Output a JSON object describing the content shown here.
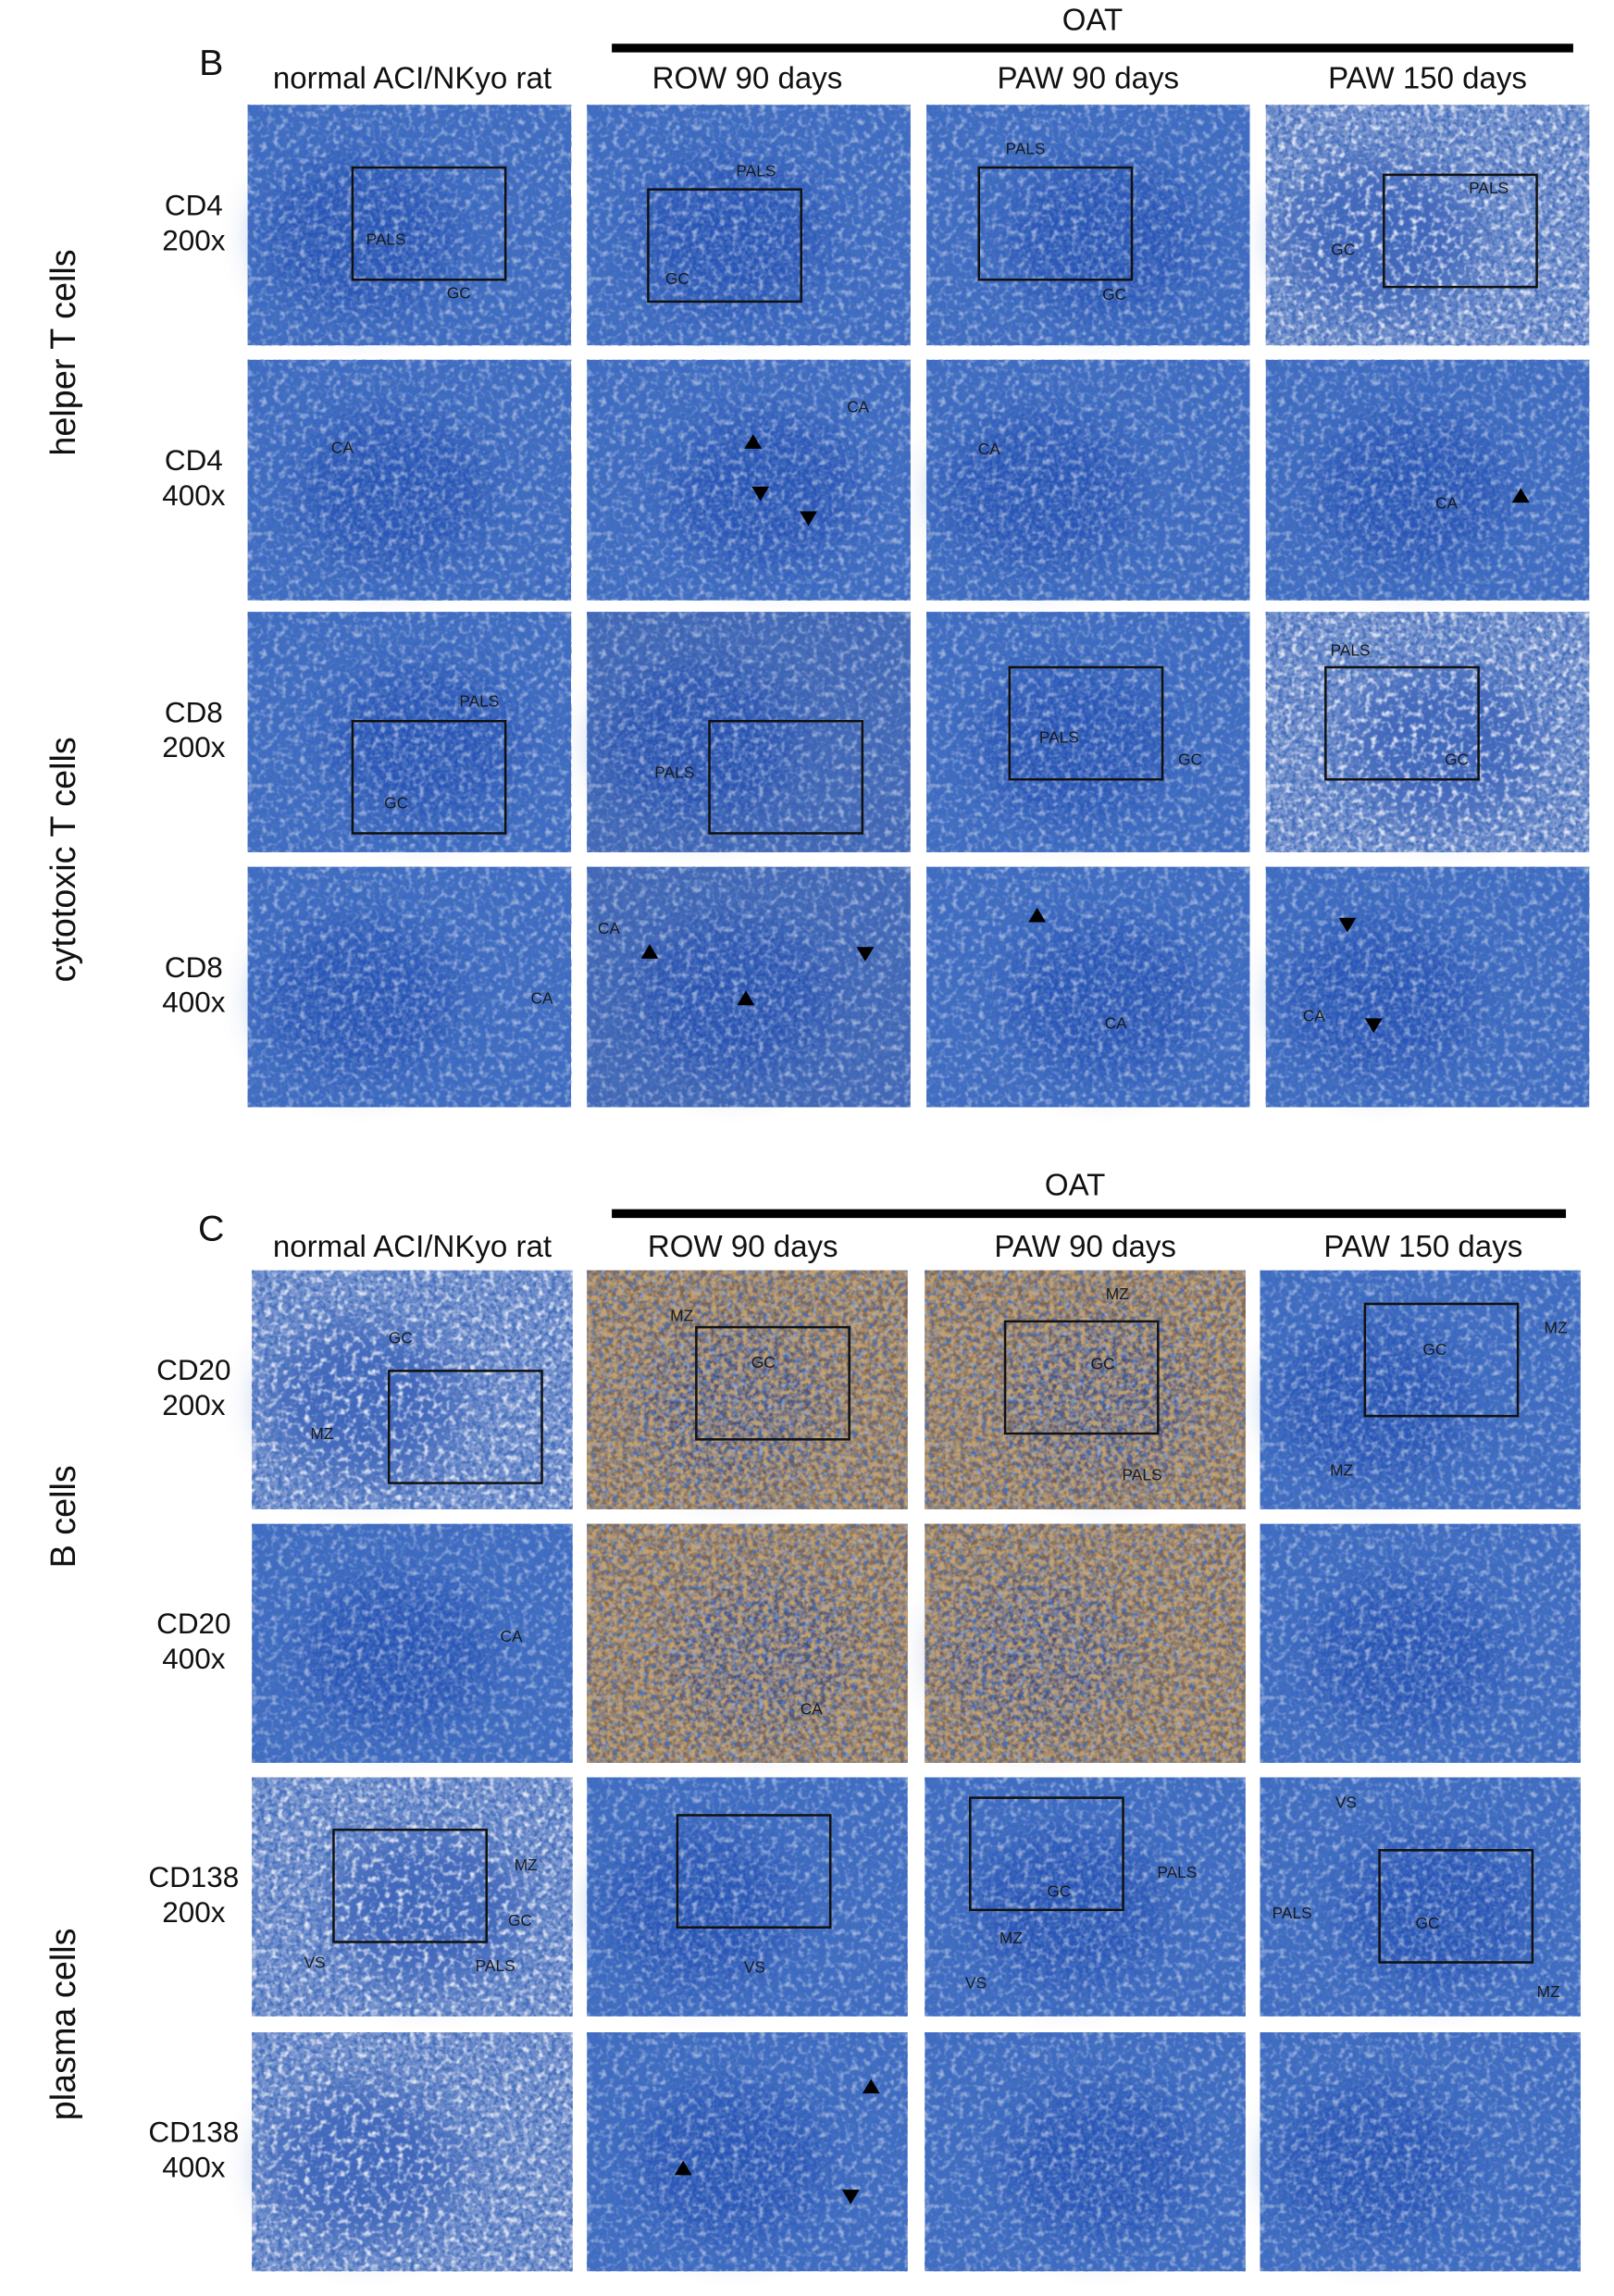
{
  "panels": [
    {
      "label": "B",
      "group_header": "OAT",
      "columns": [
        "normal ACI/NKyo rat",
        "ROW 90 days",
        "PAW 90 days",
        "PAW 150 days"
      ],
      "groups": [
        {
          "label": "helper T cells",
          "rows": [
            {
              "marker": "CD4",
              "magnification": "200x",
              "cells": [
                [
                  "PALS",
                  "GC"
                ],
                [
                  "PALS",
                  "GC"
                ],
                [
                  "PALS",
                  "GC"
                ],
                [
                  "PALS",
                  "GC"
                ]
              ]
            },
            {
              "marker": "CD4",
              "magnification": "400x",
              "cells": [
                [
                  "CA"
                ],
                [
                  "CA"
                ],
                [
                  "CA"
                ],
                [
                  "CA"
                ]
              ]
            }
          ]
        },
        {
          "label": "cytotoxic T cells",
          "rows": [
            {
              "marker": "CD8",
              "magnification": "200x",
              "cells": [
                [
                  "PALS",
                  "GC"
                ],
                [
                  "PALS"
                ],
                [
                  "PALS",
                  "GC"
                ],
                [
                  "PALS",
                  "GC"
                ]
              ]
            },
            {
              "marker": "CD8",
              "magnification": "400x",
              "cells": [
                [
                  "CA"
                ],
                [
                  "CA"
                ],
                [
                  "CA"
                ],
                [
                  "CA"
                ]
              ]
            }
          ]
        }
      ]
    },
    {
      "label": "C",
      "group_header": "OAT",
      "columns": [
        "normal ACI/NKyo rat",
        "ROW 90 days",
        "PAW 90 days",
        "PAW 150 days"
      ],
      "groups": [
        {
          "label": "B cells",
          "rows": [
            {
              "marker": "CD20",
              "magnification": "200x",
              "cells": [
                [
                  "GC",
                  "MZ"
                ],
                [
                  "MZ",
                  "GC"
                ],
                [
                  "MZ",
                  "GC",
                  "PALS"
                ],
                [
                  "GC",
                  "MZ",
                  "MZ"
                ]
              ]
            },
            {
              "marker": "CD20",
              "magnification": "400x",
              "cells": [
                [
                  "CA"
                ],
                [
                  "CA"
                ],
                [],
                []
              ]
            }
          ]
        },
        {
          "label": "plasma cells",
          "rows": [
            {
              "marker": "CD138",
              "magnification": "200x",
              "cells": [
                [
                  "MZ",
                  "GC",
                  "VS",
                  "PALS"
                ],
                [
                  "VS"
                ],
                [
                  "PALS",
                  "GC",
                  "MZ",
                  "VS"
                ],
                [
                  "VS",
                  "PALS",
                  "GC",
                  "MZ"
                ]
              ]
            },
            {
              "marker": "CD138",
              "magnification": "400x",
              "cells": [
                [],
                [],
                [],
                []
              ]
            }
          ]
        }
      ]
    }
  ]
}
